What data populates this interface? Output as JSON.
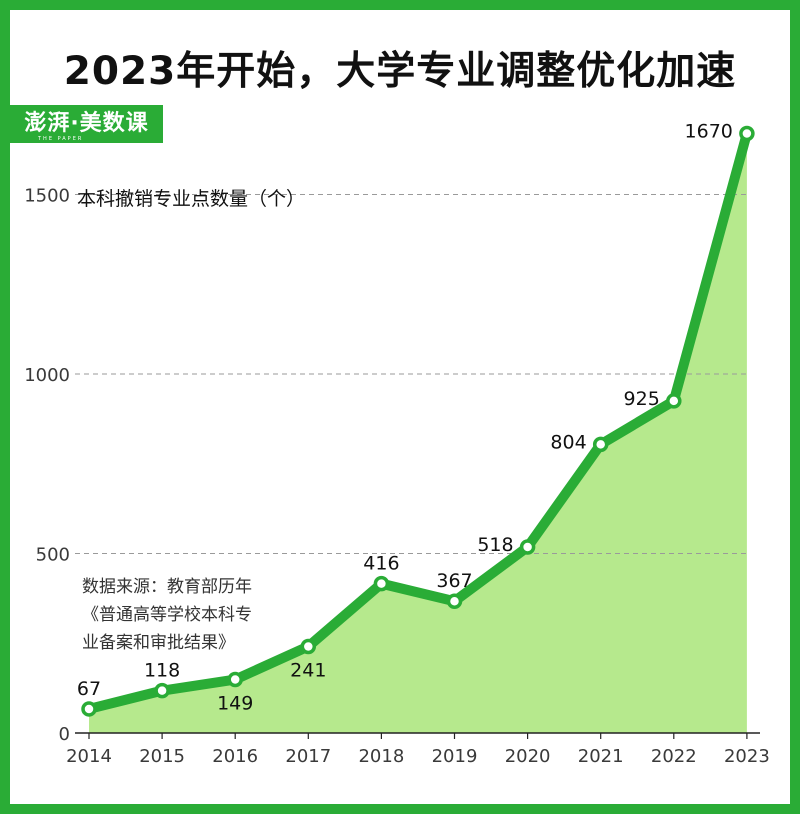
{
  "title": "2023年开始，大学专业调整优化加速",
  "logo": {
    "text": "澎湃·美数课",
    "sub": "THE PAPER"
  },
  "source_lines": [
    "数据来源：教育部历年",
    "《普通高等学校本科专",
    "业备案和审批结果》"
  ],
  "colors": {
    "line": "#2aac36",
    "area": "#b6e98d",
    "frame": "#2aac36"
  },
  "chart_data": {
    "type": "area",
    "ylabel": "本科撤销专业点数量（个）",
    "x": [
      "2014",
      "2015",
      "2016",
      "2017",
      "2018",
      "2019",
      "2020",
      "2021",
      "2022",
      "2023"
    ],
    "values": [
      67,
      118,
      149,
      241,
      416,
      367,
      518,
      804,
      925,
      1670
    ],
    "y_ticks": [
      0,
      500,
      1000,
      1500
    ],
    "ylim": [
      0,
      1700
    ],
    "grid": "dashed horizontal"
  }
}
